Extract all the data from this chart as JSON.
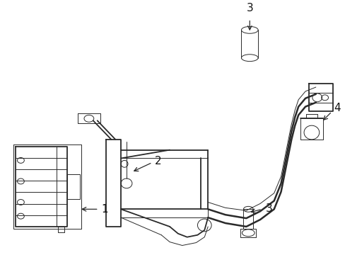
{
  "bg_color": "#ffffff",
  "line_color": "#2a2a2a",
  "label_color": "#111111",
  "fig_width": 4.89,
  "fig_height": 3.6,
  "lw_main": 1.3,
  "lw_thin": 0.7,
  "lw_thick": 1.8
}
